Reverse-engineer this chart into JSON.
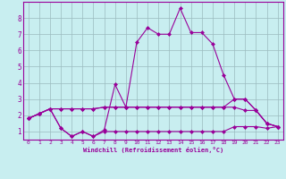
{
  "xlabel": "Windchill (Refroidissement éolien,°C)",
  "background_color": "#c8eef0",
  "grid_color": "#b0cdd0",
  "line_color": "#990099",
  "xlim": [
    -0.5,
    23.5
  ],
  "ylim": [
    0.5,
    9.0
  ],
  "xticks": [
    0,
    1,
    2,
    3,
    4,
    5,
    6,
    7,
    8,
    9,
    10,
    11,
    12,
    13,
    14,
    15,
    16,
    17,
    18,
    19,
    20,
    21,
    22,
    23
  ],
  "yticks": [
    1,
    2,
    3,
    4,
    5,
    6,
    7,
    8
  ],
  "line1_x": [
    0,
    1,
    2,
    3,
    4,
    5,
    6,
    7,
    8,
    9,
    10,
    11,
    12,
    13,
    14,
    15,
    16,
    17,
    18,
    19,
    20,
    21,
    22,
    23
  ],
  "line1_y": [
    1.8,
    2.1,
    2.4,
    1.2,
    0.7,
    1.0,
    0.7,
    1.1,
    3.9,
    2.5,
    6.5,
    7.4,
    7.0,
    7.0,
    8.6,
    7.1,
    7.1,
    6.4,
    4.5,
    3.0,
    3.0,
    2.3,
    1.5,
    1.3
  ],
  "line2_x": [
    0,
    1,
    2,
    3,
    4,
    5,
    6,
    7,
    8,
    9,
    10,
    11,
    12,
    13,
    14,
    15,
    16,
    17,
    18,
    19,
    20,
    21,
    22,
    23
  ],
  "line2_y": [
    1.8,
    2.1,
    2.4,
    2.4,
    2.4,
    2.4,
    2.4,
    2.5,
    2.5,
    2.5,
    2.5,
    2.5,
    2.5,
    2.5,
    2.5,
    2.5,
    2.5,
    2.5,
    2.5,
    3.0,
    3.0,
    2.3,
    1.5,
    1.3
  ],
  "line3_x": [
    0,
    1,
    2,
    3,
    4,
    5,
    6,
    7,
    8,
    9,
    10,
    11,
    12,
    13,
    14,
    15,
    16,
    17,
    18,
    19,
    20,
    21,
    22,
    23
  ],
  "line3_y": [
    1.8,
    2.1,
    2.4,
    2.4,
    2.4,
    2.4,
    2.4,
    2.5,
    2.5,
    2.5,
    2.5,
    2.5,
    2.5,
    2.5,
    2.5,
    2.5,
    2.5,
    2.5,
    2.5,
    2.5,
    2.3,
    2.3,
    1.5,
    1.3
  ],
  "line4_x": [
    0,
    1,
    2,
    3,
    4,
    5,
    6,
    7,
    8,
    9,
    10,
    11,
    12,
    13,
    14,
    15,
    16,
    17,
    18,
    19,
    20,
    21,
    22,
    23
  ],
  "line4_y": [
    1.8,
    2.1,
    2.4,
    1.2,
    0.7,
    1.0,
    0.7,
    1.0,
    1.0,
    1.0,
    1.0,
    1.0,
    1.0,
    1.0,
    1.0,
    1.0,
    1.0,
    1.0,
    1.0,
    1.3,
    1.3,
    1.3,
    1.2,
    1.3
  ]
}
